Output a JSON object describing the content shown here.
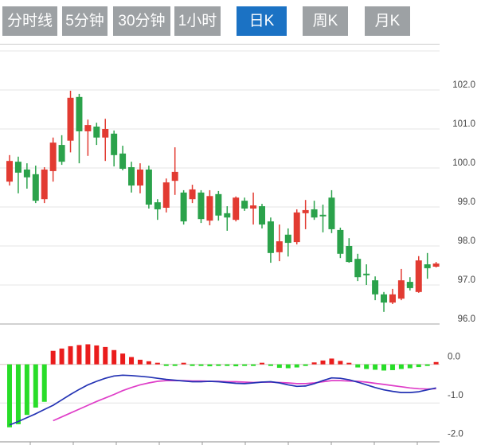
{
  "tabs": [
    {
      "label": "分时线",
      "active": false
    },
    {
      "label": "5分钟",
      "active": false
    },
    {
      "label": "30分钟",
      "active": false
    },
    {
      "label": "1小时",
      "active": false
    },
    {
      "label": "日K",
      "active": true
    },
    {
      "label": "周K",
      "active": false
    },
    {
      "label": "月K",
      "active": false
    }
  ],
  "colors": {
    "candle_up": "#e23b32",
    "candle_down": "#2ba24b",
    "hist_up": "#ea1c1c",
    "hist_down": "#28dd28",
    "dif_line": "#2433b4",
    "dea_line": "#df3ec8",
    "grid": "#e4e4e4",
    "pane_border": "#c2c2c2",
    "zero_line": "#dcc6c6",
    "bottom_axis": "#b0b0b0",
    "tick_mark": "#999999",
    "label_text": "#444444",
    "tab_bg": "#9da1a4",
    "tab_active_bg": "#1b72c4",
    "tab_text": "#ffffff"
  },
  "chart_data": {
    "type": "candlestick+macd",
    "main_pane": {
      "y_axis_labels": [
        "102.0",
        "101.0",
        "100.0",
        "99.0",
        "98.0",
        "97.0",
        "96.0"
      ],
      "y_gridline_values": [
        103,
        102,
        101,
        100,
        99,
        98,
        97,
        96
      ],
      "ylim": [
        96.0,
        103.15
      ],
      "candle_format": "[open, high, low, close]",
      "up_rule": "close >= open drawn red (Chinese convention)",
      "candles": [
        [
          99.65,
          100.33,
          99.55,
          100.18
        ],
        [
          100.16,
          100.29,
          99.35,
          99.88
        ],
        [
          99.96,
          100.12,
          99.47,
          99.76
        ],
        [
          99.84,
          100.06,
          99.1,
          99.16
        ],
        [
          99.2,
          100.02,
          99.1,
          99.96
        ],
        [
          99.92,
          100.78,
          99.65,
          100.65
        ],
        [
          100.59,
          100.84,
          100.08,
          100.16
        ],
        [
          100.7,
          101.98,
          100.4,
          101.8
        ],
        [
          101.82,
          101.9,
          100.12,
          100.94
        ],
        [
          100.94,
          101.24,
          100.31,
          101.1
        ],
        [
          101.06,
          101.16,
          100.59,
          100.78
        ],
        [
          100.78,
          101.26,
          100.18,
          101.0
        ],
        [
          100.88,
          100.96,
          100.04,
          100.33
        ],
        [
          100.37,
          100.57,
          99.94,
          99.98
        ],
        [
          100.02,
          100.16,
          99.37,
          99.55
        ],
        [
          99.55,
          100.12,
          99.35,
          99.96
        ],
        [
          99.96,
          100.06,
          98.96,
          99.06
        ],
        [
          99.12,
          99.2,
          98.67,
          98.94
        ],
        [
          98.98,
          99.73,
          98.86,
          99.63
        ],
        [
          99.67,
          100.53,
          99.31,
          99.9
        ],
        [
          99.37,
          99.43,
          98.55,
          98.63
        ],
        [
          99.2,
          99.57,
          99.1,
          99.45
        ],
        [
          99.37,
          99.43,
          98.59,
          98.69
        ],
        [
          98.65,
          99.43,
          98.53,
          99.28
        ],
        [
          99.33,
          99.41,
          98.65,
          98.78
        ],
        [
          98.84,
          99.02,
          98.39,
          98.73
        ],
        [
          98.67,
          99.27,
          98.63,
          99.24
        ],
        [
          99.16,
          99.24,
          98.9,
          98.96
        ],
        [
          98.96,
          99.37,
          98.55,
          99.04
        ],
        [
          99.02,
          99.08,
          98.45,
          98.55
        ],
        [
          98.63,
          98.73,
          97.57,
          97.82
        ],
        [
          97.84,
          98.55,
          97.61,
          98.12
        ],
        [
          98.29,
          98.45,
          97.73,
          98.08
        ],
        [
          98.1,
          98.94,
          98.04,
          98.86
        ],
        [
          98.84,
          99.18,
          98.43,
          98.92
        ],
        [
          98.94,
          99.16,
          98.67,
          98.73
        ],
        [
          98.8,
          99.06,
          98.35,
          98.76
        ],
        [
          99.24,
          99.43,
          98.33,
          98.43
        ],
        [
          98.41,
          98.47,
          97.69,
          97.8
        ],
        [
          98.0,
          98.2,
          97.57,
          97.59
        ],
        [
          97.67,
          97.8,
          97.1,
          97.2
        ],
        [
          97.29,
          97.53,
          97.0,
          97.25
        ],
        [
          97.12,
          97.22,
          96.61,
          96.76
        ],
        [
          96.76,
          96.82,
          96.31,
          96.55
        ],
        [
          96.55,
          96.9,
          96.51,
          96.76
        ],
        [
          96.65,
          97.41,
          96.61,
          97.12
        ],
        [
          97.08,
          97.2,
          96.86,
          96.92
        ],
        [
          96.82,
          97.74,
          96.8,
          97.63
        ],
        [
          97.53,
          97.82,
          97.16,
          97.43
        ],
        [
          97.47,
          97.59,
          97.45,
          97.55
        ]
      ]
    },
    "macd_pane": {
      "y_axis_labels": [
        "0.0",
        "-1.0",
        "-2.0"
      ],
      "y_gridline_values": [
        0,
        -1,
        -2
      ],
      "histogram": [
        -1.63,
        -1.55,
        -1.31,
        -1.12,
        -0.97,
        0.35,
        0.41,
        0.47,
        0.5,
        0.52,
        0.49,
        0.45,
        0.37,
        0.28,
        0.19,
        0.12,
        0.08,
        0.02,
        -0.04,
        -0.03,
        0.02,
        -0.01,
        -0.02,
        -0.05,
        -0.04,
        -0.04,
        -0.05,
        -0.04,
        -0.03,
        0.03,
        -0.04,
        -0.09,
        -0.1,
        -0.08,
        -0.03,
        0.05,
        0.1,
        0.15,
        0.09,
        0.04,
        -0.08,
        -0.12,
        -0.14,
        -0.16,
        -0.15,
        -0.12,
        -0.1,
        -0.07,
        -0.03,
        0.06
      ],
      "dif": [
        -1.57,
        -1.48,
        -1.38,
        -1.28,
        -1.17,
        -1.06,
        -0.92,
        -0.78,
        -0.65,
        -0.53,
        -0.44,
        -0.36,
        -0.3,
        -0.28,
        -0.29,
        -0.31,
        -0.33,
        -0.36,
        -0.39,
        -0.41,
        -0.43,
        -0.45,
        -0.45,
        -0.44,
        -0.45,
        -0.47,
        -0.49,
        -0.5,
        -0.48,
        -0.46,
        -0.45,
        -0.48,
        -0.53,
        -0.57,
        -0.56,
        -0.5,
        -0.42,
        -0.35,
        -0.36,
        -0.4,
        -0.46,
        -0.53,
        -0.6,
        -0.66,
        -0.7,
        -0.73,
        -0.73,
        -0.71,
        -0.66,
        -0.61
      ],
      "dea": [
        null,
        null,
        null,
        null,
        null,
        -1.46,
        -1.36,
        -1.26,
        -1.16,
        -1.06,
        -0.96,
        -0.87,
        -0.78,
        -0.68,
        -0.6,
        -0.53,
        -0.48,
        -0.44,
        -0.42,
        -0.42,
        -0.42,
        -0.43,
        -0.43,
        -0.44,
        -0.44,
        -0.45,
        -0.45,
        -0.46,
        -0.47,
        -0.46,
        -0.46,
        -0.47,
        -0.48,
        -0.5,
        -0.5,
        -0.48,
        -0.45,
        -0.42,
        -0.42,
        -0.43,
        -0.44,
        -0.46,
        -0.49,
        -0.52,
        -0.55,
        -0.58,
        -0.61,
        -0.63,
        -0.64,
        -0.63
      ]
    },
    "x_axis_tick_positions": [
      38,
      92,
      146,
      200,
      254,
      308,
      362,
      416,
      470,
      524
    ]
  }
}
